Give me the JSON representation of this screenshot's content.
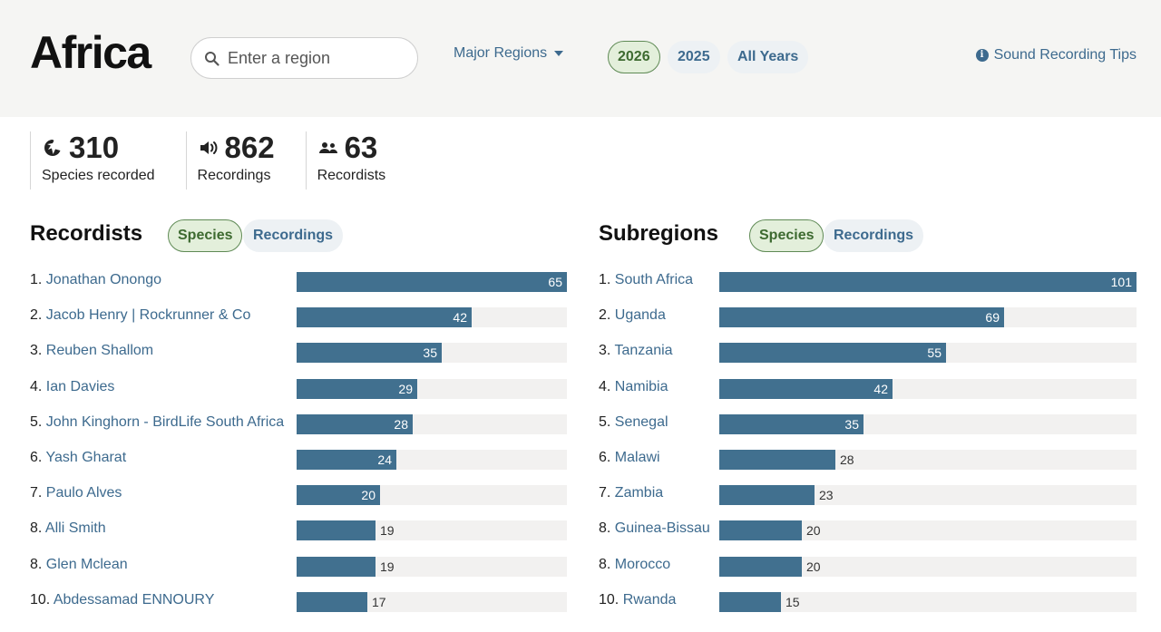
{
  "header": {
    "title": "Africa",
    "search_placeholder": "Enter a region",
    "major_regions_label": "Major Regions",
    "years": [
      "2026",
      "2025",
      "All Years"
    ],
    "active_year": "2026",
    "tips_label": "Sound Recording Tips"
  },
  "stats": [
    {
      "value": "310",
      "label": "Species recorded",
      "icon": "bird-icon"
    },
    {
      "value": "862",
      "label": "Recordings",
      "icon": "speaker-icon"
    },
    {
      "value": "63",
      "label": "Recordists",
      "icon": "people-icon"
    }
  ],
  "recordists": {
    "title": "Recordists",
    "toggle_on": "Species",
    "toggle_off": "Recordings",
    "max": 65,
    "items": [
      {
        "rank": "1.",
        "name": "Jonathan Onongo",
        "value": 65
      },
      {
        "rank": "2.",
        "name": "Jacob Henry | Rockrunner & Co",
        "value": 42
      },
      {
        "rank": "3.",
        "name": "Reuben Shallom",
        "value": 35
      },
      {
        "rank": "4.",
        "name": "Ian Davies",
        "value": 29
      },
      {
        "rank": "5.",
        "name": "John Kinghorn - BirdLife South Africa",
        "value": 28
      },
      {
        "rank": "6.",
        "name": "Yash Gharat",
        "value": 24
      },
      {
        "rank": "7.",
        "name": "Paulo Alves",
        "value": 20
      },
      {
        "rank": "8.",
        "name": "Alli Smith",
        "value": 19
      },
      {
        "rank": "8.",
        "name": "Glen Mclean",
        "value": 19
      },
      {
        "rank": "10.",
        "name": "Abdessamad ENNOURY",
        "value": 17
      }
    ]
  },
  "subregions": {
    "title": "Subregions",
    "toggle_on": "Species",
    "toggle_off": "Recordings",
    "max": 101,
    "items": [
      {
        "rank": "1.",
        "name": "South Africa",
        "value": 101
      },
      {
        "rank": "2.",
        "name": "Uganda",
        "value": 69
      },
      {
        "rank": "3.",
        "name": "Tanzania",
        "value": 55
      },
      {
        "rank": "4.",
        "name": "Namibia",
        "value": 42
      },
      {
        "rank": "5.",
        "name": "Senegal",
        "value": 35
      },
      {
        "rank": "6.",
        "name": "Malawi",
        "value": 28
      },
      {
        "rank": "7.",
        "name": "Zambia",
        "value": 23
      },
      {
        "rank": "8.",
        "name": "Guinea-Bissau",
        "value": 20
      },
      {
        "rank": "8.",
        "name": "Morocco",
        "value": 20
      },
      {
        "rank": "10.",
        "name": "Rwanda",
        "value": 15
      }
    ]
  },
  "colors": {
    "bar": "#41708f",
    "link": "#3d6a8e",
    "active_pill_bg": "#e3efdb",
    "active_pill_text": "#3d6a30"
  }
}
